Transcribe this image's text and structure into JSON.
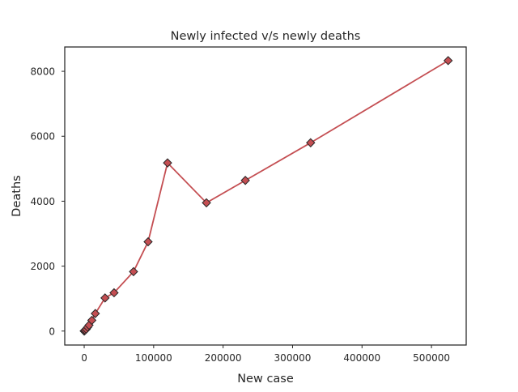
{
  "chart_data": {
    "type": "line",
    "title": "Newly infected v/s newly deaths",
    "xlabel": "New case",
    "ylabel": "Deaths",
    "xlim": [
      -28000,
      550000
    ],
    "ylim": [
      -430,
      8750
    ],
    "xticks": [
      0,
      100000,
      200000,
      300000,
      400000,
      500000
    ],
    "yticks": [
      0,
      2000,
      4000,
      6000,
      8000
    ],
    "grid": false,
    "legend": "none",
    "marker": "diamond",
    "line_color": "#c44e52",
    "marker_edge_color": "#262626",
    "series": [
      {
        "x": [
          0,
          500,
          1500,
          3000,
          5000,
          7000,
          11000,
          16000,
          30000,
          43000,
          71000,
          92000,
          120000,
          176000,
          232000,
          326000,
          524000
        ],
        "y": [
          0,
          10,
          30,
          60,
          120,
          180,
          330,
          540,
          1020,
          1180,
          1830,
          2750,
          5180,
          3950,
          4640,
          5800,
          8330
        ]
      }
    ]
  }
}
